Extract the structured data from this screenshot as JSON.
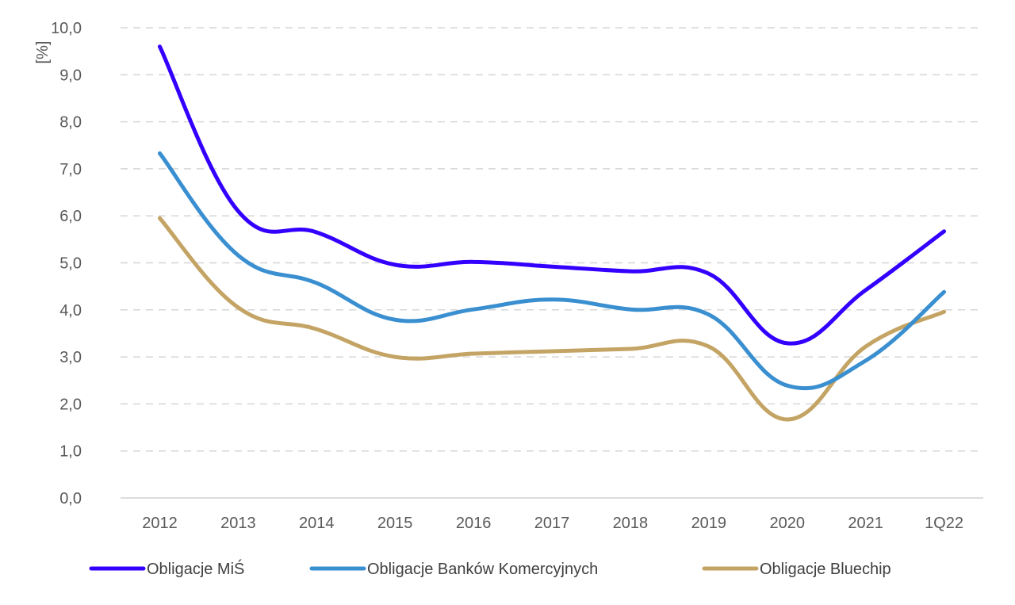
{
  "chart_data": {
    "type": "line",
    "title": "",
    "xlabel": "",
    "ylabel": "[%]",
    "ylim": [
      0,
      10
    ],
    "yticks": [
      "0,0",
      "1,0",
      "2,0",
      "3,0",
      "4,0",
      "5,0",
      "6,0",
      "7,0",
      "8,0",
      "9,0",
      "10,0"
    ],
    "ytick_values": [
      0,
      1,
      2,
      3,
      4,
      5,
      6,
      7,
      8,
      9,
      10
    ],
    "grid": "horizontal dashed",
    "legend_position": "bottom",
    "smoothed": true,
    "categories": [
      "2012",
      "2013",
      "2014",
      "2015",
      "2016",
      "2017",
      "2018",
      "2019",
      "2020",
      "2021",
      "1Q22"
    ],
    "series": [
      {
        "name": "Obligacje MiŚ",
        "color": "#3300ff",
        "values": [
          9.6,
          6.1,
          5.65,
          4.96,
          5.02,
          4.92,
          4.82,
          4.77,
          3.29,
          4.42,
          5.67
        ]
      },
      {
        "name": "Obligacje Banków Komercyjnych",
        "color": "#3a8fd0",
        "values": [
          7.33,
          5.16,
          4.57,
          3.79,
          4.01,
          4.22,
          4.01,
          3.9,
          2.39,
          2.92,
          4.38
        ]
      },
      {
        "name": "Obligacje Bluechip",
        "color": "#c4a464",
        "values": [
          5.95,
          4.05,
          3.59,
          3.0,
          3.07,
          3.12,
          3.17,
          3.22,
          1.67,
          3.22,
          3.96
        ]
      }
    ]
  }
}
